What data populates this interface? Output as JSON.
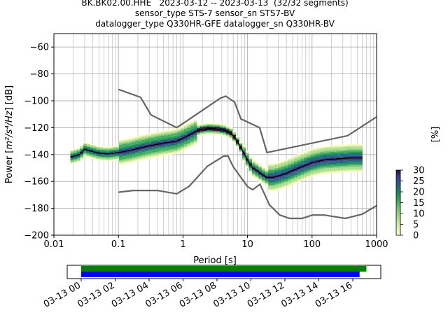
{
  "title": {
    "line1": "BK.BK02.00.HHE   2023-03-12 -- 2023-03-13  (32/32 segments)",
    "line2": "sensor_type STS-7 sensor_sn STS7-BV",
    "line3": "datalogger_type Q330HR-GFE datalogger_sn Q330HR-BV"
  },
  "chart_data": [
    {
      "type": "heatmap",
      "subtype": "probabilistic-power-spectral-density",
      "xlabel": "Period [s]",
      "ylabel_prefix": "Power [",
      "ylabel_units": "m²/s⁴/Hz",
      "ylabel_suffix": "] [dB]",
      "xscale": "log",
      "xlim": [
        0.01,
        1000
      ],
      "ylim": [
        -200,
        -50
      ],
      "xticks": [
        {
          "value": 0.01,
          "label": "0.01"
        },
        {
          "value": 0.1,
          "label": "0.1"
        },
        {
          "value": 1,
          "label": "1"
        },
        {
          "value": 10,
          "label": "10"
        },
        {
          "value": 100,
          "label": "100"
        },
        {
          "value": 1000,
          "label": "1000"
        }
      ],
      "yticks": [
        -60,
        -80,
        -100,
        -120,
        -140,
        -160,
        -180,
        -200
      ],
      "grid": true,
      "mean_curve": {
        "color": "#000000",
        "x": [
          0.018,
          0.025,
          0.03,
          0.035,
          0.05,
          0.07,
          0.1,
          0.15,
          0.2,
          0.3,
          0.5,
          0.8,
          1.2,
          1.8,
          2.5,
          3.5,
          4.5,
          5.5,
          6.5,
          7.5,
          9,
          10.5,
          12,
          14,
          17,
          20,
          25,
          30,
          40,
          50,
          70,
          100,
          150,
          200,
          300,
          400,
          600
        ],
        "y": [
          -142,
          -140,
          -136,
          -137,
          -139,
          -139.5,
          -138.5,
          -137,
          -135.5,
          -133.5,
          -131.5,
          -130,
          -126,
          -121.5,
          -120.5,
          -121,
          -122,
          -124,
          -128,
          -133,
          -140,
          -146,
          -150,
          -152,
          -155,
          -157,
          -157,
          -156,
          -154,
          -152,
          -149,
          -146,
          -144,
          -143.5,
          -143,
          -142.5,
          -142.5
        ]
      },
      "noise_models": {
        "color": "#666666",
        "high": {
          "x": [
            0.1,
            0.22,
            0.32,
            0.8,
            3.8,
            4.6,
            6.3,
            7.9,
            15.4,
            20,
            354.8,
            1000
          ],
          "y": [
            -91.5,
            -97.4,
            -110.5,
            -120,
            -98,
            -96.5,
            -101,
            -113.5,
            -120,
            -138.5,
            -126,
            -112
          ]
        },
        "low": {
          "x": [
            0.1,
            0.17,
            0.4,
            0.8,
            1.24,
            2.4,
            4.3,
            5,
            6,
            10,
            12,
            15.6,
            21.9,
            31.6,
            45,
            70,
            101,
            154,
            328,
            600,
            1000
          ],
          "y": [
            -168,
            -166.7,
            -166.7,
            -169.2,
            -163.7,
            -148.6,
            -141.1,
            -141.1,
            -149,
            -163.8,
            -166.2,
            -162.1,
            -177.5,
            -185,
            -187.5,
            -187.5,
            -185,
            -185,
            -187.5,
            -184.4,
            -178
          ]
        }
      },
      "density_colorbar": {
        "label": "[%]",
        "ticks": [
          0,
          5,
          10,
          15,
          20,
          25,
          30
        ],
        "range": [
          0,
          30
        ]
      }
    },
    {
      "type": "timeline",
      "subtype": "data-coverage",
      "xticklabels": [
        "03-13 00",
        "03-13 02",
        "03-13 04",
        "03-13 06",
        "03-13 08",
        "03-13 10",
        "03-13 12",
        "03-13 14",
        "03-13 16"
      ],
      "xtick_hours": [
        0,
        2,
        4,
        6,
        8,
        10,
        12,
        14,
        16
      ],
      "bars": [
        {
          "color": "#008000",
          "start_hour": 0,
          "end_hour": 16.8
        },
        {
          "color": "#0000ff",
          "start_hour": 0,
          "end_hour": 16.4
        }
      ]
    }
  ]
}
